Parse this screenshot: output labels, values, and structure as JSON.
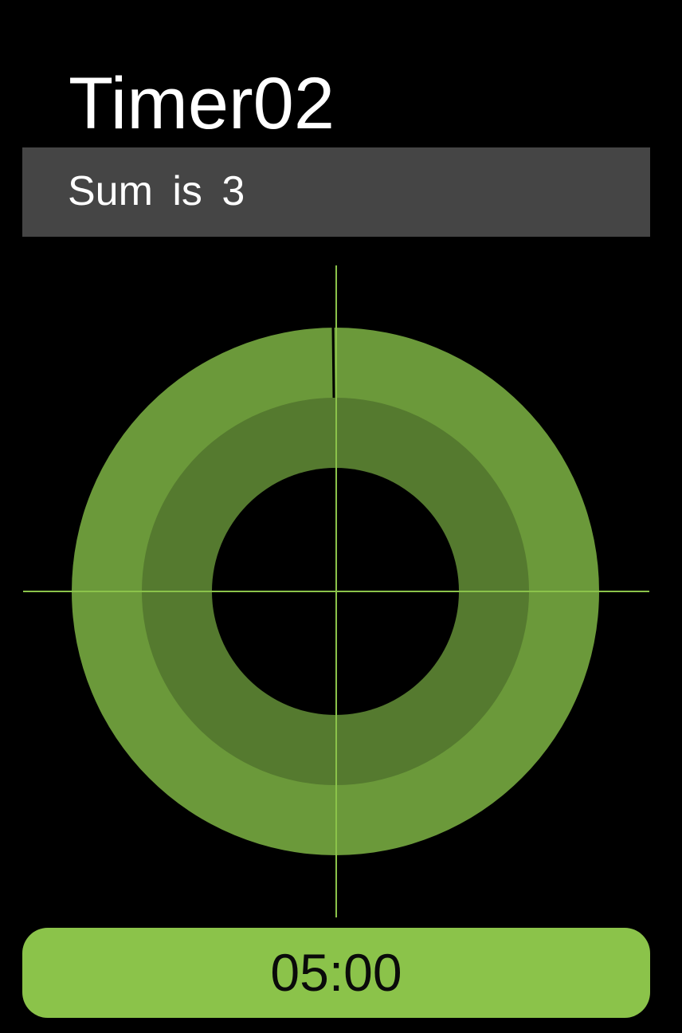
{
  "header": {
    "title": "Timer02"
  },
  "status": {
    "message": "Sum  is  3"
  },
  "timer": {
    "elapsed_fraction": 0.0,
    "colors": {
      "outer_ring": "#6b993a",
      "inner_ring": "#557a2f",
      "crosshair": "#8bc34a",
      "hand": "#000000",
      "background": "#000000"
    }
  },
  "action": {
    "time_label": "05:00",
    "button_color": "#8bc34a"
  }
}
